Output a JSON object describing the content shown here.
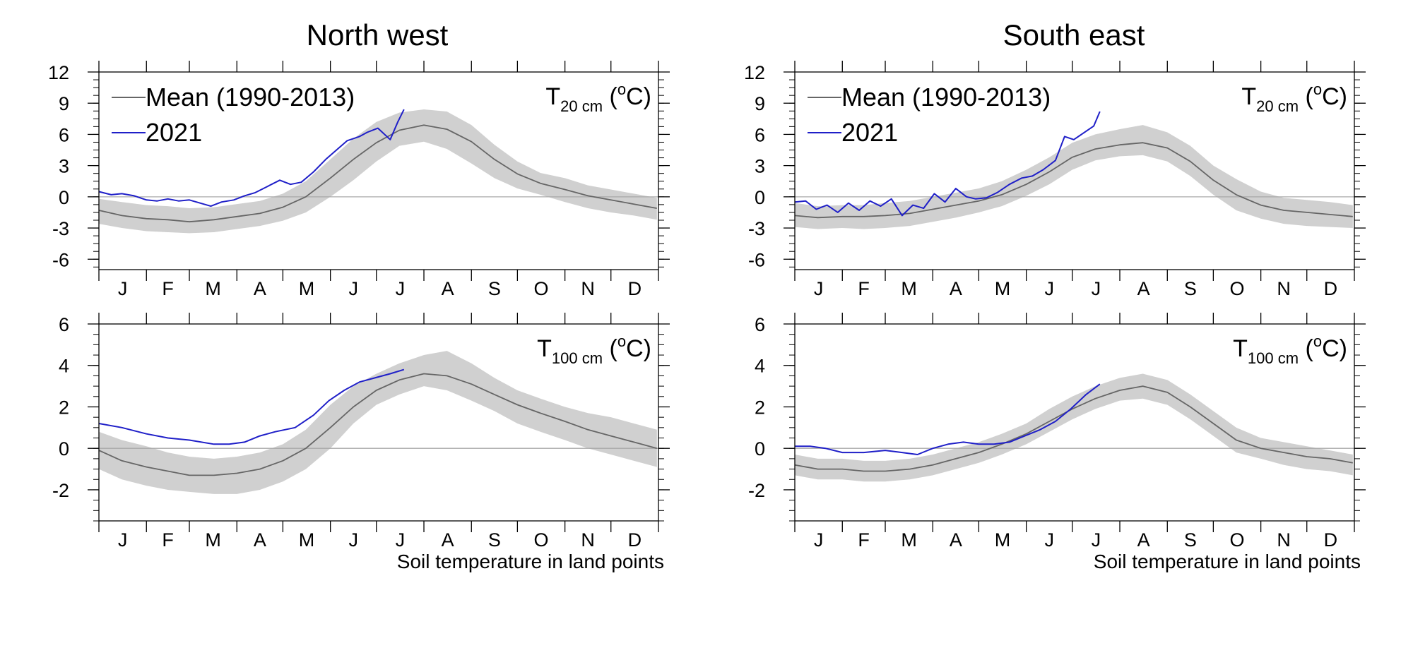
{
  "chart_data": [
    {
      "type": "line",
      "panel": "North west",
      "title": "North west",
      "variable_label": {
        "base": "T",
        "sub": "20 cm",
        "unit_pre": " (",
        "unit_sup": "o",
        "unit_post": "C)"
      },
      "ylim": [
        -7,
        12
      ],
      "yticks": [
        -6,
        -3,
        0,
        3,
        6,
        9,
        12
      ],
      "xlim": [
        0,
        365
      ],
      "month_labels": [
        "J",
        "F",
        "M",
        "A",
        "M",
        "J",
        "J",
        "A",
        "S",
        "O",
        "N",
        "D"
      ],
      "legend": {
        "placement": "top-left",
        "items": [
          "Mean (1990-2013)",
          "2021"
        ]
      },
      "grid": false,
      "colors": {
        "mean": "#666666",
        "current": "#1f1fc8",
        "spread": "#d0d0d0"
      },
      "series": [
        {
          "name": "Mean (1990-2013)",
          "x": [
            0,
            15,
            31,
            45,
            59,
            75,
            90,
            105,
            120,
            135,
            151,
            166,
            181,
            196,
            212,
            227,
            243,
            258,
            273,
            288,
            304,
            319,
            334,
            349,
            364
          ],
          "values": [
            -1.3,
            -1.8,
            -2.1,
            -2.2,
            -2.4,
            -2.2,
            -1.9,
            -1.6,
            -1.0,
            0.0,
            1.8,
            3.6,
            5.2,
            6.4,
            6.9,
            6.5,
            5.3,
            3.6,
            2.2,
            1.3,
            0.7,
            0.1,
            -0.3,
            -0.7,
            -1.1
          ]
        },
        {
          "name": "2021",
          "x": [
            0,
            8,
            15,
            23,
            31,
            38,
            45,
            52,
            59,
            66,
            73,
            80,
            88,
            95,
            102,
            110,
            118,
            125,
            132,
            140,
            148,
            155,
            162,
            170,
            175,
            182,
            190,
            195,
            199
          ],
          "values": [
            0.5,
            0.2,
            0.3,
            0.1,
            -0.3,
            -0.4,
            -0.2,
            -0.4,
            -0.3,
            -0.6,
            -0.9,
            -0.5,
            -0.3,
            0.1,
            0.4,
            1.0,
            1.6,
            1.2,
            1.4,
            2.4,
            3.6,
            4.5,
            5.4,
            5.8,
            6.2,
            6.6,
            5.5,
            7.2,
            8.4
          ]
        }
      ],
      "band": {
        "x": [
          0,
          15,
          31,
          45,
          59,
          75,
          90,
          105,
          120,
          135,
          151,
          166,
          181,
          196,
          212,
          227,
          243,
          258,
          273,
          288,
          304,
          319,
          334,
          349,
          364
        ],
        "lower": [
          -2.6,
          -3.0,
          -3.3,
          -3.4,
          -3.5,
          -3.4,
          -3.1,
          -2.8,
          -2.3,
          -1.5,
          0.0,
          1.6,
          3.4,
          4.9,
          5.3,
          4.6,
          3.2,
          1.8,
          0.8,
          0.2,
          -0.5,
          -1.1,
          -1.5,
          -1.8,
          -2.2
        ],
        "upper": [
          -0.2,
          -0.5,
          -0.8,
          -0.9,
          -1.1,
          -1.0,
          -0.7,
          -0.4,
          0.3,
          1.5,
          3.6,
          5.6,
          7.2,
          8.1,
          8.4,
          8.2,
          6.9,
          5.0,
          3.4,
          2.3,
          1.8,
          1.1,
          0.7,
          0.3,
          -0.1
        ]
      }
    },
    {
      "type": "line",
      "panel": "South east",
      "title": "South east",
      "variable_label": {
        "base": "T",
        "sub": "20 cm",
        "unit_pre": " (",
        "unit_sup": "o",
        "unit_post": "C)"
      },
      "ylim": [
        -7,
        12
      ],
      "yticks": [
        -6,
        -3,
        0,
        3,
        6,
        9,
        12
      ],
      "xlim": [
        0,
        365
      ],
      "month_labels": [
        "J",
        "F",
        "M",
        "A",
        "M",
        "J",
        "J",
        "A",
        "S",
        "O",
        "N",
        "D"
      ],
      "legend": {
        "placement": "top-left",
        "items": [
          "Mean (1990-2013)",
          "2021"
        ]
      },
      "grid": false,
      "colors": {
        "mean": "#666666",
        "current": "#1f1fc8",
        "spread": "#d0d0d0"
      },
      "series": [
        {
          "name": "Mean (1990-2013)",
          "x": [
            0,
            15,
            31,
            45,
            59,
            75,
            90,
            105,
            120,
            135,
            151,
            166,
            181,
            196,
            212,
            227,
            243,
            258,
            273,
            288,
            304,
            319,
            334,
            349,
            364
          ],
          "values": [
            -1.8,
            -2.0,
            -1.9,
            -1.9,
            -1.8,
            -1.6,
            -1.2,
            -0.8,
            -0.4,
            0.2,
            1.2,
            2.4,
            3.8,
            4.6,
            5.0,
            5.2,
            4.7,
            3.4,
            1.6,
            0.2,
            -0.8,
            -1.3,
            -1.5,
            -1.7,
            -1.9
          ]
        },
        {
          "name": "2021",
          "x": [
            0,
            7,
            14,
            21,
            28,
            35,
            42,
            49,
            56,
            63,
            70,
            77,
            84,
            91,
            98,
            105,
            112,
            118,
            125,
            132,
            140,
            148,
            155,
            162,
            170,
            176,
            182,
            188,
            195,
            199
          ],
          "values": [
            -0.5,
            -0.4,
            -1.2,
            -0.8,
            -1.5,
            -0.6,
            -1.3,
            -0.4,
            -0.9,
            -0.2,
            -1.8,
            -0.8,
            -1.1,
            0.3,
            -0.5,
            0.8,
            0.0,
            -0.2,
            -0.1,
            0.4,
            1.2,
            1.8,
            2.0,
            2.6,
            3.5,
            5.8,
            5.5,
            6.1,
            6.8,
            8.2
          ]
        }
      ],
      "band": {
        "x": [
          0,
          15,
          31,
          45,
          59,
          75,
          90,
          105,
          120,
          135,
          151,
          166,
          181,
          196,
          212,
          227,
          243,
          258,
          273,
          288,
          304,
          319,
          334,
          349,
          364
        ],
        "lower": [
          -2.9,
          -3.1,
          -3.0,
          -3.1,
          -3.0,
          -2.8,
          -2.4,
          -2.0,
          -1.5,
          -0.9,
          0.1,
          1.2,
          2.6,
          3.5,
          3.9,
          4.0,
          3.4,
          2.0,
          0.2,
          -1.3,
          -2.1,
          -2.6,
          -2.8,
          -2.9,
          -3.0
        ],
        "upper": [
          -0.6,
          -0.9,
          -0.8,
          -0.8,
          -0.6,
          -0.4,
          0.0,
          0.4,
          0.8,
          1.5,
          2.6,
          3.8,
          5.2,
          6.0,
          6.5,
          6.9,
          6.2,
          4.9,
          3.0,
          1.7,
          0.5,
          -0.1,
          -0.3,
          -0.5,
          -0.8
        ]
      }
    },
    {
      "type": "line",
      "panel": "North west",
      "variable_label": {
        "base": "T",
        "sub": "100 cm",
        "unit_pre": " (",
        "unit_sup": "o",
        "unit_post": "C)"
      },
      "ylim": [
        -3.5,
        6
      ],
      "yticks": [
        -2,
        0,
        2,
        4,
        6
      ],
      "xlim": [
        0,
        365
      ],
      "month_labels": [
        "J",
        "F",
        "M",
        "A",
        "M",
        "J",
        "J",
        "A",
        "S",
        "O",
        "N",
        "D"
      ],
      "xlabel": "Soil temperature in land points",
      "grid": false,
      "colors": {
        "mean": "#666666",
        "current": "#1f1fc8",
        "spread": "#d0d0d0"
      },
      "series": [
        {
          "name": "Mean (1990-2013)",
          "x": [
            0,
            15,
            31,
            45,
            59,
            75,
            90,
            105,
            120,
            135,
            151,
            166,
            181,
            196,
            212,
            227,
            243,
            258,
            273,
            288,
            304,
            319,
            334,
            349,
            364
          ],
          "values": [
            -0.1,
            -0.6,
            -0.9,
            -1.1,
            -1.3,
            -1.3,
            -1.2,
            -1.0,
            -0.6,
            0.0,
            1.0,
            2.0,
            2.8,
            3.3,
            3.6,
            3.5,
            3.1,
            2.6,
            2.1,
            1.7,
            1.3,
            0.9,
            0.6,
            0.3,
            0.0
          ]
        },
        {
          "name": "2021",
          "x": [
            0,
            15,
            31,
            45,
            59,
            75,
            85,
            95,
            105,
            115,
            128,
            140,
            150,
            160,
            170,
            180,
            190,
            199
          ],
          "values": [
            1.2,
            1.0,
            0.7,
            0.5,
            0.4,
            0.2,
            0.2,
            0.3,
            0.6,
            0.8,
            1.0,
            1.6,
            2.3,
            2.8,
            3.2,
            3.4,
            3.6,
            3.8
          ]
        }
      ],
      "band": {
        "x": [
          0,
          15,
          31,
          45,
          59,
          75,
          90,
          105,
          120,
          135,
          151,
          166,
          181,
          196,
          212,
          227,
          243,
          258,
          273,
          288,
          304,
          319,
          334,
          349,
          364
        ],
        "lower": [
          -1.0,
          -1.5,
          -1.8,
          -2.0,
          -2.1,
          -2.2,
          -2.2,
          -2.0,
          -1.6,
          -1.0,
          0.0,
          1.2,
          2.1,
          2.6,
          3.0,
          2.8,
          2.3,
          1.8,
          1.2,
          0.8,
          0.4,
          0.0,
          -0.3,
          -0.6,
          -0.9
        ],
        "upper": [
          0.8,
          0.4,
          0.1,
          -0.2,
          -0.4,
          -0.5,
          -0.4,
          -0.2,
          0.2,
          0.9,
          2.1,
          3.0,
          3.6,
          4.1,
          4.5,
          4.7,
          4.1,
          3.4,
          2.8,
          2.4,
          2.0,
          1.7,
          1.5,
          1.2,
          0.9
        ]
      }
    },
    {
      "type": "line",
      "panel": "South east",
      "variable_label": {
        "base": "T",
        "sub": "100 cm",
        "unit_pre": " (",
        "unit_sup": "o",
        "unit_post": "C)"
      },
      "ylim": [
        -3.5,
        6
      ],
      "yticks": [
        -2,
        0,
        2,
        4,
        6
      ],
      "xlim": [
        0,
        365
      ],
      "month_labels": [
        "J",
        "F",
        "M",
        "A",
        "M",
        "J",
        "J",
        "A",
        "S",
        "O",
        "N",
        "D"
      ],
      "xlabel": "Soil temperature in land points",
      "grid": false,
      "colors": {
        "mean": "#666666",
        "current": "#1f1fc8",
        "spread": "#d0d0d0"
      },
      "series": [
        {
          "name": "Mean (1990-2013)",
          "x": [
            0,
            15,
            31,
            45,
            59,
            75,
            90,
            105,
            120,
            135,
            151,
            166,
            181,
            196,
            212,
            227,
            243,
            258,
            273,
            288,
            304,
            319,
            334,
            349,
            364
          ],
          "values": [
            -0.8,
            -1.0,
            -1.0,
            -1.1,
            -1.1,
            -1.0,
            -0.8,
            -0.5,
            -0.2,
            0.2,
            0.7,
            1.3,
            1.9,
            2.4,
            2.8,
            3.0,
            2.7,
            2.0,
            1.2,
            0.4,
            0.0,
            -0.2,
            -0.4,
            -0.5,
            -0.7
          ]
        },
        {
          "name": "2021",
          "x": [
            0,
            10,
            20,
            31,
            45,
            59,
            70,
            80,
            90,
            100,
            110,
            120,
            130,
            140,
            150,
            160,
            170,
            180,
            190,
            199
          ],
          "values": [
            0.1,
            0.1,
            0.0,
            -0.2,
            -0.2,
            -0.1,
            -0.2,
            -0.3,
            0.0,
            0.2,
            0.3,
            0.2,
            0.2,
            0.3,
            0.6,
            0.9,
            1.3,
            1.9,
            2.6,
            3.1
          ]
        }
      ],
      "band": {
        "x": [
          0,
          15,
          31,
          45,
          59,
          75,
          90,
          105,
          120,
          135,
          151,
          166,
          181,
          196,
          212,
          227,
          243,
          258,
          273,
          288,
          304,
          319,
          334,
          349,
          364
        ],
        "lower": [
          -1.3,
          -1.5,
          -1.5,
          -1.6,
          -1.6,
          -1.5,
          -1.3,
          -1.0,
          -0.7,
          -0.3,
          0.2,
          0.8,
          1.4,
          1.9,
          2.3,
          2.4,
          2.1,
          1.4,
          0.6,
          -0.2,
          -0.5,
          -0.8,
          -1.0,
          -1.1,
          -1.3
        ],
        "upper": [
          -0.3,
          -0.5,
          -0.5,
          -0.6,
          -0.6,
          -0.5,
          -0.3,
          0.0,
          0.3,
          0.7,
          1.2,
          1.9,
          2.5,
          3.0,
          3.4,
          3.6,
          3.3,
          2.6,
          1.8,
          1.0,
          0.5,
          0.3,
          0.1,
          -0.1,
          -0.3
        ]
      }
    }
  ]
}
